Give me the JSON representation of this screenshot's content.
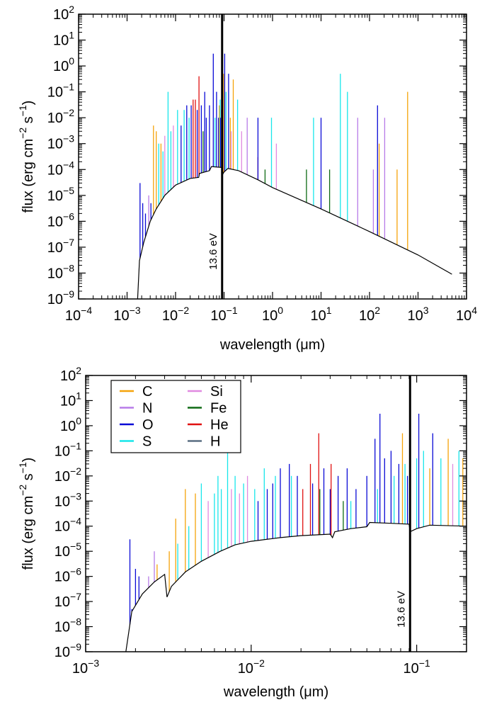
{
  "colors": {
    "C": "#f5a30a",
    "N": "#b77be8",
    "O": "#0a0ad6",
    "S": "#17e6ea",
    "Si": "#e089e0",
    "Fe": "#0e6a14",
    "He": "#e01010",
    "H": "#5a6e82",
    "continuum": "#000000"
  },
  "chart_data": [
    {
      "type": "line",
      "xlabel": "wavelength (μm)",
      "ylabel": "flux (erg cm⁻² s⁻¹)",
      "xscale": "log",
      "yscale": "log",
      "xlim": [
        0.0001,
        10000
      ],
      "ylim": [
        1e-09,
        100
      ],
      "grid": false,
      "x_ticks": [
        {
          "base": "10",
          "exp": "−4",
          "value": 0.0001
        },
        {
          "base": "10",
          "exp": "−3",
          "value": 0.001
        },
        {
          "base": "10",
          "exp": "−2",
          "value": 0.01
        },
        {
          "base": "10",
          "exp": "−1",
          "value": 0.1
        },
        {
          "base": "10",
          "exp": "0",
          "value": 1
        },
        {
          "base": "10",
          "exp": "1",
          "value": 10
        },
        {
          "base": "10",
          "exp": "2",
          "value": 100
        },
        {
          "base": "10",
          "exp": "3",
          "value": 1000
        },
        {
          "base": "10",
          "exp": "4",
          "value": 10000
        }
      ],
      "y_ticks": [
        {
          "base": "10",
          "exp": "−9",
          "value": 1e-09
        },
        {
          "base": "10",
          "exp": "−8",
          "value": 1e-08
        },
        {
          "base": "10",
          "exp": "−7",
          "value": 1e-07
        },
        {
          "base": "10",
          "exp": "−6",
          "value": 1e-06
        },
        {
          "base": "10",
          "exp": "−5",
          "value": 1e-05
        },
        {
          "base": "10",
          "exp": "−4",
          "value": 0.0001
        },
        {
          "base": "10",
          "exp": "−3",
          "value": 0.001
        },
        {
          "base": "10",
          "exp": "−2",
          "value": 0.01
        },
        {
          "base": "10",
          "exp": "−1",
          "value": 0.1
        },
        {
          "base": "10",
          "exp": "0",
          "value": 1
        },
        {
          "base": "10",
          "exp": "1",
          "value": 10
        },
        {
          "base": "10",
          "exp": "2",
          "value": 100
        }
      ],
      "marker": {
        "x": 0.0912,
        "label": "13.6 eV"
      },
      "continuum": [
        [
          0.00165,
          1e-09
        ],
        [
          0.0018,
          3e-08
        ],
        [
          0.0022,
          1.5e-07
        ],
        [
          0.003,
          1e-06
        ],
        [
          0.004,
          3e-06
        ],
        [
          0.006,
          1e-05
        ],
        [
          0.01,
          2.5e-05
        ],
        [
          0.02,
          4.5e-05
        ],
        [
          0.03,
          5e-05
        ],
        [
          0.031,
          7e-05
        ],
        [
          0.05,
          9e-05
        ],
        [
          0.055,
          0.00013
        ],
        [
          0.09,
          0.00012
        ],
        [
          0.0912,
          6e-05
        ],
        [
          0.1,
          8e-05
        ],
        [
          0.12,
          0.00011
        ],
        [
          0.2,
          9e-05
        ],
        [
          0.5,
          4e-05
        ],
        [
          1,
          2e-05
        ],
        [
          10,
          3e-06
        ],
        [
          100,
          4e-07
        ],
        [
          1000,
          5e-08
        ],
        [
          5000,
          9e-09
        ]
      ],
      "lines": [
        {
          "el": "O",
          "x": 0.0017,
          "y": 1e-09
        },
        {
          "el": "O",
          "x": 0.00185,
          "y": 3e-05
        },
        {
          "el": "O",
          "x": 0.0021,
          "y": 5e-06
        },
        {
          "el": "O",
          "x": 0.0024,
          "y": 2e-06
        },
        {
          "el": "N",
          "x": 0.0028,
          "y": 1e-05
        },
        {
          "el": "O",
          "x": 0.0031,
          "y": 5e-06
        },
        {
          "el": "C",
          "x": 0.0035,
          "y": 0.005
        },
        {
          "el": "C",
          "x": 0.004,
          "y": 0.003
        },
        {
          "el": "S",
          "x": 0.0045,
          "y": 0.001
        },
        {
          "el": "C",
          "x": 0.005,
          "y": 0.001
        },
        {
          "el": "S",
          "x": 0.0055,
          "y": 0.0005
        },
        {
          "el": "Si",
          "x": 0.006,
          "y": 0.002
        },
        {
          "el": "S",
          "x": 0.007,
          "y": 0.1
        },
        {
          "el": "S",
          "x": 0.008,
          "y": 0.003
        },
        {
          "el": "Si",
          "x": 0.009,
          "y": 0.005
        },
        {
          "el": "S",
          "x": 0.011,
          "y": 0.02
        },
        {
          "el": "O",
          "x": 0.013,
          "y": 0.005
        },
        {
          "el": "S",
          "x": 0.015,
          "y": 0.02
        },
        {
          "el": "O",
          "x": 0.017,
          "y": 0.03
        },
        {
          "el": "S",
          "x": 0.019,
          "y": 0.01
        },
        {
          "el": "O",
          "x": 0.021,
          "y": 0.03
        },
        {
          "el": "He",
          "x": 0.023,
          "y": 0.05
        },
        {
          "el": "He",
          "x": 0.0256,
          "y": 0.05
        },
        {
          "el": "O",
          "x": 0.028,
          "y": 0.02
        },
        {
          "el": "He",
          "x": 0.0304,
          "y": 0.4
        },
        {
          "el": "O",
          "x": 0.034,
          "y": 0.03
        },
        {
          "el": "Fe",
          "x": 0.037,
          "y": 0.003
        },
        {
          "el": "O",
          "x": 0.04,
          "y": 0.1
        },
        {
          "el": "O",
          "x": 0.043,
          "y": 0.01
        },
        {
          "el": "O",
          "x": 0.05,
          "y": 0.03
        },
        {
          "el": "O",
          "x": 0.06,
          "y": 3
        },
        {
          "el": "S",
          "x": 0.065,
          "y": 0.01
        },
        {
          "el": "O",
          "x": 0.07,
          "y": 0.1
        },
        {
          "el": "O",
          "x": 0.077,
          "y": 0.01
        },
        {
          "el": "C",
          "x": 0.08,
          "y": 0.03
        },
        {
          "el": "S",
          "x": 0.083,
          "y": 0.05
        },
        {
          "el": "O",
          "x": 0.085,
          "y": 0.01
        },
        {
          "el": "Si",
          "x": 0.088,
          "y": 0.02
        },
        {
          "el": "C",
          "x": 0.0977,
          "y": 0.5
        },
        {
          "el": "O",
          "x": 0.103,
          "y": 3
        },
        {
          "el": "S",
          "x": 0.11,
          "y": 0.1
        },
        {
          "el": "O",
          "x": 0.124,
          "y": 0.5
        },
        {
          "el": "C",
          "x": 0.135,
          "y": 0.01
        },
        {
          "el": "Si",
          "x": 0.14,
          "y": 0.003
        },
        {
          "el": "C",
          "x": 0.155,
          "y": 0.3
        },
        {
          "el": "S",
          "x": 0.19,
          "y": 0.05
        },
        {
          "el": "Si",
          "x": 0.23,
          "y": 0.003
        },
        {
          "el": "N",
          "x": 0.3,
          "y": 0.01
        },
        {
          "el": "He",
          "x": 0.5,
          "y": 0.0003
        },
        {
          "el": "O",
          "x": 0.5,
          "y": 0.01
        },
        {
          "el": "Fe",
          "x": 0.7,
          "y": 0.0001
        },
        {
          "el": "S",
          "x": 0.95,
          "y": 0.01
        },
        {
          "el": "Si",
          "x": 1.2,
          "y": 0.001
        },
        {
          "el": "Fe",
          "x": 5,
          "y": 0.0001
        },
        {
          "el": "S",
          "x": 7,
          "y": 0.01
        },
        {
          "el": "O",
          "x": 10,
          "y": 0.01
        },
        {
          "el": "Fe",
          "x": 15,
          "y": 0.0001
        },
        {
          "el": "S",
          "x": 25,
          "y": 0.5
        },
        {
          "el": "N",
          "x": 57,
          "y": 0.01
        },
        {
          "el": "S",
          "x": 35,
          "y": 0.1
        },
        {
          "el": "N",
          "x": 120,
          "y": 0.0001
        },
        {
          "el": "C",
          "x": 158,
          "y": 0.001
        },
        {
          "el": "N",
          "x": 205,
          "y": 0.01
        },
        {
          "el": "O",
          "x": 146,
          "y": 0.03
        },
        {
          "el": "C",
          "x": 370,
          "y": 0.0001
        },
        {
          "el": "C",
          "x": 610,
          "y": 0.1
        }
      ]
    },
    {
      "type": "line",
      "xlabel": "wavelength (μm)",
      "ylabel": "flux (erg cm⁻² s⁻¹)",
      "xscale": "log",
      "yscale": "log",
      "xlim": [
        0.001,
        0.2
      ],
      "ylim": [
        1e-09,
        100
      ],
      "grid": false,
      "legend": {
        "placement": "top-left",
        "columns": 2,
        "entries": [
          "C",
          "N",
          "O",
          "S",
          "Si",
          "Fe",
          "He",
          "H"
        ]
      },
      "x_ticks": [
        {
          "base": "10",
          "exp": "−3",
          "value": 0.001
        },
        {
          "base": "10",
          "exp": "−2",
          "value": 0.01
        },
        {
          "base": "10",
          "exp": "−1",
          "value": 0.1
        }
      ],
      "y_ticks": [
        {
          "base": "10",
          "exp": "−9",
          "value": 1e-09
        },
        {
          "base": "10",
          "exp": "−8",
          "value": 1e-08
        },
        {
          "base": "10",
          "exp": "−7",
          "value": 1e-07
        },
        {
          "base": "10",
          "exp": "−6",
          "value": 1e-06
        },
        {
          "base": "10",
          "exp": "−5",
          "value": 1e-05
        },
        {
          "base": "10",
          "exp": "−4",
          "value": 0.0001
        },
        {
          "base": "10",
          "exp": "−3",
          "value": 0.001
        },
        {
          "base": "10",
          "exp": "−2",
          "value": 0.01
        },
        {
          "base": "10",
          "exp": "−1",
          "value": 0.1
        },
        {
          "base": "10",
          "exp": "0",
          "value": 1
        },
        {
          "base": "10",
          "exp": "1",
          "value": 10
        },
        {
          "base": "10",
          "exp": "2",
          "value": 100
        }
      ],
      "marker": {
        "x": 0.0912,
        "label": "13.6 eV"
      },
      "continuum": [
        [
          0.00175,
          1e-09
        ],
        [
          0.0019,
          4e-08
        ],
        [
          0.0022,
          2e-07
        ],
        [
          0.0026,
          6e-07
        ],
        [
          0.003,
          1.2e-06
        ],
        [
          0.0031,
          1.5e-07
        ],
        [
          0.0033,
          4e-07
        ],
        [
          0.004,
          1.5e-06
        ],
        [
          0.005,
          4e-06
        ],
        [
          0.0065,
          1e-05
        ],
        [
          0.008,
          1.8e-05
        ],
        [
          0.01,
          2.5e-05
        ],
        [
          0.015,
          3.5e-05
        ],
        [
          0.02,
          4.2e-05
        ],
        [
          0.03,
          4.8e-05
        ],
        [
          0.031,
          3.5e-05
        ],
        [
          0.032,
          6e-05
        ],
        [
          0.04,
          8e-05
        ],
        [
          0.05,
          9.5e-05
        ],
        [
          0.052,
          0.00014
        ],
        [
          0.07,
          0.00013
        ],
        [
          0.09,
          0.00012
        ],
        [
          0.0912,
          6e-05
        ],
        [
          0.1,
          8e-05
        ],
        [
          0.12,
          0.00011
        ],
        [
          0.2,
          0.0001
        ]
      ],
      "lines": [
        {
          "el": "O",
          "x": 0.00178,
          "y": 1e-09
        },
        {
          "el": "O",
          "x": 0.00185,
          "y": 3e-05
        },
        {
          "el": "O",
          "x": 0.0019,
          "y": 5e-08
        },
        {
          "el": "O",
          "x": 0.002,
          "y": 2e-06
        },
        {
          "el": "O",
          "x": 0.0021,
          "y": 1e-06
        },
        {
          "el": "N",
          "x": 0.0024,
          "y": 1e-06
        },
        {
          "el": "N",
          "x": 0.0026,
          "y": 1e-05
        },
        {
          "el": "C",
          "x": 0.0027,
          "y": 3e-06
        },
        {
          "el": "C",
          "x": 0.0032,
          "y": 1e-05
        },
        {
          "el": "C",
          "x": 0.0035,
          "y": 0.0002
        },
        {
          "el": "S",
          "x": 0.0036,
          "y": 2e-05
        },
        {
          "el": "C",
          "x": 0.004,
          "y": 0.003
        },
        {
          "el": "S",
          "x": 0.0042,
          "y": 0.0001
        },
        {
          "el": "C",
          "x": 0.0046,
          "y": 0.002
        },
        {
          "el": "S",
          "x": 0.005,
          "y": 0.005
        },
        {
          "el": "Si",
          "x": 0.0055,
          "y": 0.001
        },
        {
          "el": "S",
          "x": 0.006,
          "y": 0.002
        },
        {
          "el": "S",
          "x": 0.0063,
          "y": 0.01
        },
        {
          "el": "S",
          "x": 0.0066,
          "y": 0.003
        },
        {
          "el": "S",
          "x": 0.0072,
          "y": 0.1
        },
        {
          "el": "Si",
          "x": 0.0076,
          "y": 0.003
        },
        {
          "el": "S",
          "x": 0.008,
          "y": 0.01
        },
        {
          "el": "Si",
          "x": 0.0085,
          "y": 0.002
        },
        {
          "el": "S",
          "x": 0.009,
          "y": 0.005
        },
        {
          "el": "Si",
          "x": 0.0095,
          "y": 0.01
        },
        {
          "el": "S",
          "x": 0.0105,
          "y": 0.003
        },
        {
          "el": "O",
          "x": 0.011,
          "y": 0.001
        },
        {
          "el": "S",
          "x": 0.012,
          "y": 0.02
        },
        {
          "el": "O",
          "x": 0.0125,
          "y": 0.003
        },
        {
          "el": "O",
          "x": 0.0135,
          "y": 0.005
        },
        {
          "el": "S",
          "x": 0.014,
          "y": 0.01
        },
        {
          "el": "O",
          "x": 0.015,
          "y": 0.02
        },
        {
          "el": "O",
          "x": 0.017,
          "y": 0.03
        },
        {
          "el": "S",
          "x": 0.0175,
          "y": 0.01
        },
        {
          "el": "O",
          "x": 0.019,
          "y": 0.01
        },
        {
          "el": "He",
          "x": 0.0205,
          "y": 0.003
        },
        {
          "el": "He",
          "x": 0.0228,
          "y": 0.03
        },
        {
          "el": "O",
          "x": 0.0235,
          "y": 0.005
        },
        {
          "el": "He",
          "x": 0.0256,
          "y": 0.5
        },
        {
          "el": "Fe",
          "x": 0.026,
          "y": 0.003
        },
        {
          "el": "O",
          "x": 0.0275,
          "y": 0.02
        },
        {
          "el": "O",
          "x": 0.03,
          "y": 0.003
        },
        {
          "el": "He",
          "x": 0.0304,
          "y": 0.03
        },
        {
          "el": "O",
          "x": 0.0335,
          "y": 0.01
        },
        {
          "el": "Fe",
          "x": 0.036,
          "y": 0.001
        },
        {
          "el": "O",
          "x": 0.038,
          "y": 0.02
        },
        {
          "el": "S",
          "x": 0.04,
          "y": 0.001
        },
        {
          "el": "O",
          "x": 0.043,
          "y": 0.003
        },
        {
          "el": "O",
          "x": 0.05,
          "y": 0.01
        },
        {
          "el": "O",
          "x": 0.056,
          "y": 0.3
        },
        {
          "el": "S",
          "x": 0.058,
          "y": 0.003
        },
        {
          "el": "O",
          "x": 0.06,
          "y": 3
        },
        {
          "el": "O",
          "x": 0.064,
          "y": 0.05
        },
        {
          "el": "O",
          "x": 0.07,
          "y": 0.1
        },
        {
          "el": "S",
          "x": 0.073,
          "y": 0.01
        },
        {
          "el": "O",
          "x": 0.078,
          "y": 0.03
        },
        {
          "el": "C",
          "x": 0.082,
          "y": 0.5
        },
        {
          "el": "S",
          "x": 0.085,
          "y": 0.03
        },
        {
          "el": "O",
          "x": 0.088,
          "y": 0.01
        },
        {
          "el": "S",
          "x": 0.1,
          "y": 0.05
        },
        {
          "el": "O",
          "x": 0.103,
          "y": 3
        },
        {
          "el": "S",
          "x": 0.11,
          "y": 0.1
        },
        {
          "el": "C",
          "x": 0.12,
          "y": 0.02
        },
        {
          "el": "O",
          "x": 0.125,
          "y": 0.5
        },
        {
          "el": "S",
          "x": 0.14,
          "y": 0.05
        },
        {
          "el": "C",
          "x": 0.155,
          "y": 0.3
        },
        {
          "el": "Si",
          "x": 0.165,
          "y": 0.03
        },
        {
          "el": "S",
          "x": 0.18,
          "y": 0.1
        },
        {
          "el": "C",
          "x": 0.19,
          "y": 0.05
        }
      ]
    }
  ]
}
